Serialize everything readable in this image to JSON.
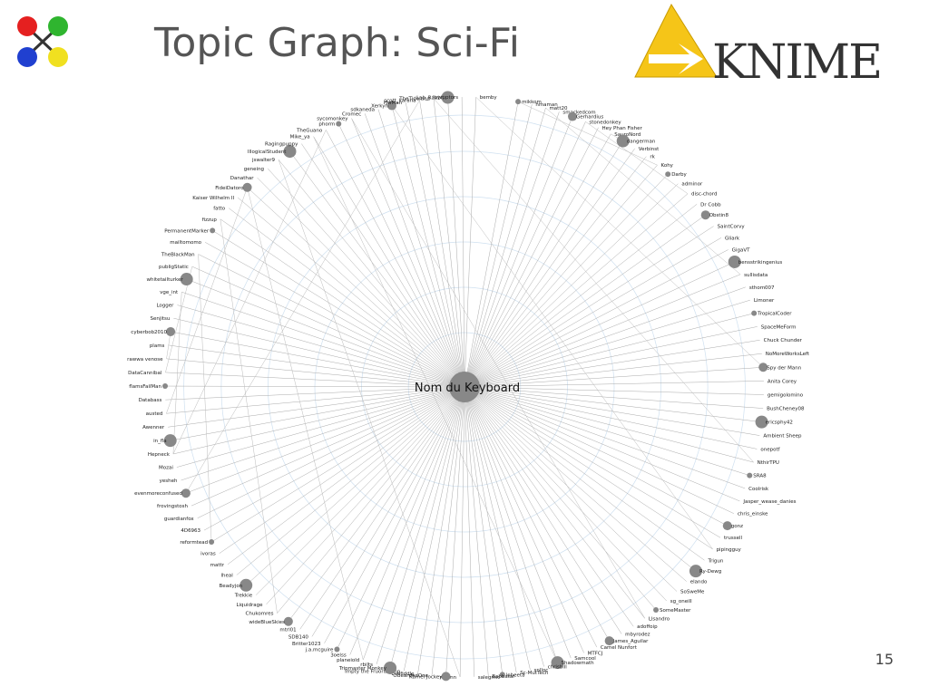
{
  "title": "Topic Graph: Sci-Fi",
  "logo": "KNIME",
  "page_number": "15",
  "graph": {
    "center": "Nom du Keyboard",
    "nodes": [
      "mikkom",
      "hmaman",
      "matt20",
      "smackedcom",
      "Gerhardius",
      "stonedonkey",
      "Hey Phan Fisher",
      "SauroNord",
      "dangerman",
      "Verbinst",
      "rk",
      "Kohy",
      "Darby",
      "adminor",
      "disc-chord",
      "Dr Cobb",
      "Obstin8",
      "SaintCorvy",
      "Gliark",
      "GigaVT",
      "bensstrikingenius",
      "sullisdata",
      "sthom007",
      "Limoner",
      "TropicalCoder",
      "SpaceMeForm",
      "Chuck Chunder",
      "NoMoreWorksLeft",
      "Spy der Mann",
      "Anita Corey",
      "gemigolomino",
      "BushCheney08",
      "ericsphy42",
      "Ambient Sheep",
      "onepotf",
      "NthirTPU",
      "SRA8",
      "Coolrisk",
      "Jasper_wease_danies",
      "chris_einske",
      "gonz",
      "trussell",
      "pipingguy",
      "Trigun",
      "Ry-Dewg",
      "elando",
      "SoSweMe",
      "sg_oneill",
      "SomeMaster",
      "Llsandro",
      "adoffoip",
      "mbyrodez",
      "James_Aguilar",
      "Camel Nunfort",
      "MTFCJ",
      "Samcool",
      "Shadowmath",
      "chrisbill",
      "snlloc",
      "Sc-MutTech",
      "lobeeta",
      "Babbatar",
      "salegmic",
      "newnn",
      "Kamel Jockey",
      "OBeardedOne",
      "Evilfiddle",
      "Impty the Fruorus Imp",
      "Tripmaster Monkey",
      "rbilts",
      "planeiold",
      "3oelss",
      "j.a.mcguire",
      "Britter1023",
      "SDB140",
      "mtrl01",
      "wideBlueSkies",
      "Chukomres",
      "Liquidrage",
      "Trekkie",
      "Beadyjon",
      "lheal",
      "mattr",
      "ivoras",
      "reformtead",
      "4D6963",
      "guardianfox",
      "frovingstosh",
      "evenmoreconfused",
      "yesheh",
      "Mozai",
      "Hepneck",
      "in_fla",
      "Awenner",
      "austed",
      "Databass",
      "flamsFailMan",
      "DataCannibal",
      "rawwa venose",
      "plams",
      "cyberbob2010",
      "Senjitsu",
      "Logger",
      "vge_int",
      "whitetailturker",
      "publigStatic",
      "TheBlackMan",
      "mailtomomo",
      "PermanentMarker",
      "fizzup",
      "fatto",
      "Kaiser Wilhelm II",
      "FideiDatoro",
      "Danathar",
      "geneing",
      "jswalter9",
      "IllogicalStudent",
      "Ragingpuppy",
      "Mike_ya",
      "TheGuano",
      "phorm",
      "sycomonkey",
      "Cromec",
      "sdkaneda",
      "Xerkyh",
      "HwMan",
      "scott_karana",
      "TheTideland",
      "Lab_Rabbit",
      "Ivyruptors",
      "bemby"
    ]
  }
}
